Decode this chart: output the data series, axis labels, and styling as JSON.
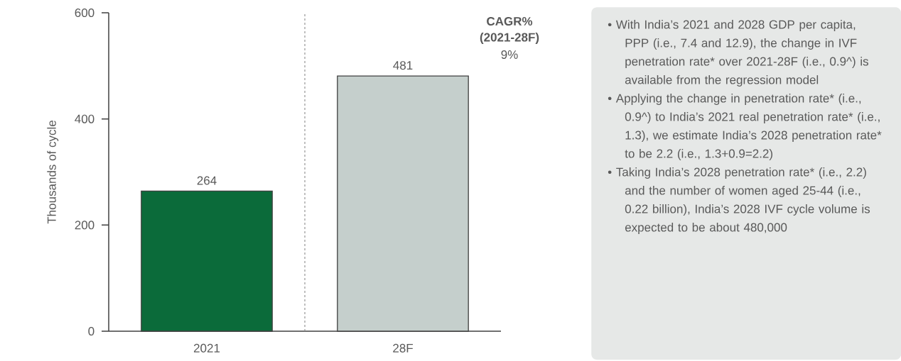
{
  "chart_data": {
    "type": "bar",
    "categories": [
      "2021",
      "28F"
    ],
    "values": [
      264,
      481
    ],
    "colors": [
      "#0b6b3a",
      "#c5cfcc"
    ],
    "data_labels": true,
    "ylabel": "Thousands of cycle",
    "ylim": [
      0,
      600
    ],
    "yticks": [
      0,
      200,
      400,
      600
    ],
    "annotations": [
      "CAGR%",
      "(2021-28F)",
      "9%",
      "•  With India’s 2021 and 2028 GDP per capita, PPP (i.e., 7.4 and 12.9), the change in IVF penetration rate* over 2021-28F (i.e., 0.9^) is available from the regression model",
      "•  Applying the change in penetration rate* (i.e., 0.9^) to India’s 2021 real penetration rate* (i.e., 1.3), we estimate India’s 2028 penetration rate* to be 2.2 (i.e., 1.3+0.9=2.2)",
      "•  Taking India’s 2028 penetration rate* (i.e., 2.2) and the number of women aged 25-44 (i.e., 0.22 billion), India’s 2028 IVF cycle volume is expected to be about 480,000"
    ]
  }
}
